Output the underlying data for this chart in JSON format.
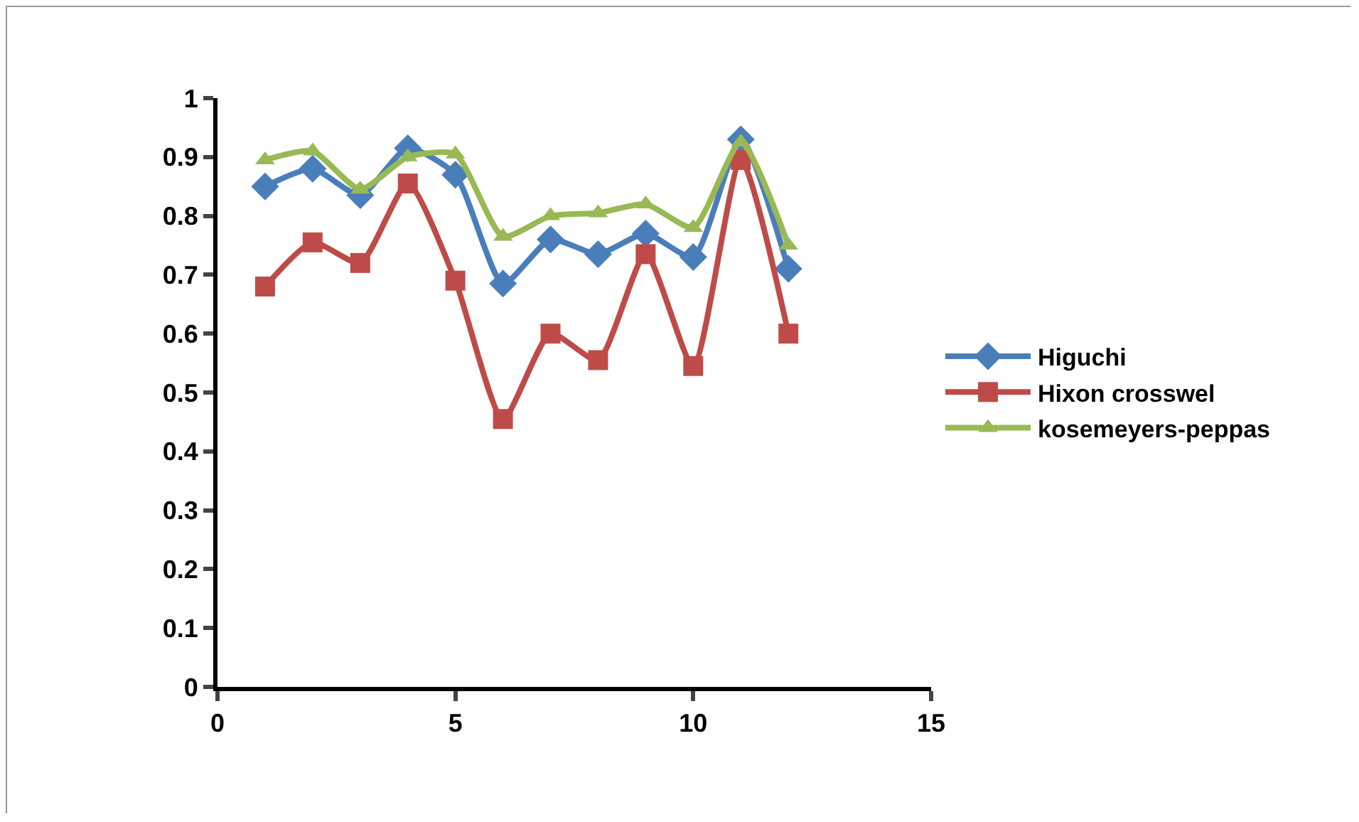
{
  "chart_data": {
    "type": "line",
    "x": [
      1,
      2,
      3,
      4,
      5,
      6,
      7,
      8,
      9,
      10,
      11,
      12
    ],
    "series": [
      {
        "name": "Higuchi",
        "color": "#4a7ebb",
        "marker": "diamond",
        "values": [
          0.85,
          0.88,
          0.835,
          0.915,
          0.87,
          0.685,
          0.76,
          0.735,
          0.77,
          0.73,
          0.93,
          0.71
        ]
      },
      {
        "name": "Hixon crosswel",
        "color": "#be4b48",
        "marker": "square",
        "values": [
          0.68,
          0.755,
          0.72,
          0.855,
          0.69,
          0.455,
          0.6,
          0.555,
          0.735,
          0.545,
          0.895,
          0.6
        ]
      },
      {
        "name": "kosemeyers-peppas",
        "color": "#98b954",
        "marker": "triangle",
        "values": [
          0.895,
          0.91,
          0.845,
          0.9,
          0.905,
          0.765,
          0.8,
          0.805,
          0.82,
          0.78,
          0.925,
          0.75
        ]
      }
    ],
    "xlim": [
      0,
      15
    ],
    "xticks": [
      0,
      5,
      10,
      15
    ],
    "ylim": [
      0,
      1
    ],
    "yticks": [
      0,
      0.1,
      0.2,
      0.3,
      0.4,
      0.5,
      0.6,
      0.7,
      0.8,
      0.9,
      1
    ],
    "grid": false,
    "legend": "right",
    "line_style": "solid"
  }
}
